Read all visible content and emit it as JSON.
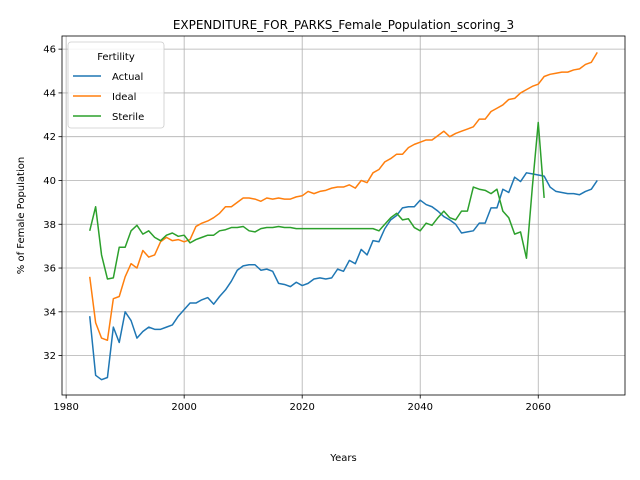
{
  "chart_data": {
    "type": "line",
    "title": "EXPENDITURE_FOR_PARKS_Female_Population_scoring_3",
    "xlabel": "Years",
    "ylabel": "% of Female Population",
    "xlim": [
      1979.3,
      2074.7
    ],
    "ylim": [
      30.2,
      46.6
    ],
    "xticks": [
      1980,
      2000,
      2020,
      2040,
      2060
    ],
    "yticks": [
      32,
      34,
      36,
      38,
      40,
      42,
      44,
      46
    ],
    "grid": true,
    "legend": {
      "title": "Fertility",
      "placement": "top-left"
    },
    "series": [
      {
        "name": "Actual",
        "color": "#1f77b4",
        "x": [
          1984,
          1985,
          1986,
          1987,
          1988,
          1989,
          1990,
          1991,
          1992,
          1993,
          1994,
          1995,
          1996,
          1997,
          1998,
          1999,
          2000,
          2001,
          2002,
          2003,
          2004,
          2005,
          2006,
          2007,
          2008,
          2009,
          2010,
          2011,
          2012,
          2013,
          2014,
          2015,
          2016,
          2017,
          2018,
          2019,
          2020,
          2021,
          2022,
          2023,
          2024,
          2025,
          2026,
          2027,
          2028,
          2029,
          2030,
          2031,
          2032,
          2033,
          2034,
          2035,
          2036,
          2037,
          2038,
          2039,
          2040,
          2041,
          2042,
          2043,
          2044,
          2045,
          2046,
          2047,
          2048,
          2049,
          2050,
          2051,
          2052,
          2053,
          2054,
          2055,
          2056,
          2057,
          2058,
          2059,
          2060,
          2061,
          2062,
          2063,
          2064,
          2065,
          2066,
          2067,
          2068,
          2069,
          2070
        ],
        "y": [
          33.8,
          31.1,
          30.9,
          31.0,
          33.3,
          32.6,
          34.0,
          33.6,
          32.8,
          33.1,
          33.3,
          33.2,
          33.2,
          33.3,
          33.4,
          33.8,
          34.1,
          34.4,
          34.4,
          34.55,
          34.65,
          34.35,
          34.7,
          35.0,
          35.4,
          35.9,
          36.1,
          36.15,
          36.15,
          35.9,
          35.95,
          35.85,
          35.3,
          35.25,
          35.15,
          35.35,
          35.2,
          35.3,
          35.5,
          35.55,
          35.5,
          35.55,
          35.95,
          35.85,
          36.35,
          36.2,
          36.85,
          36.6,
          37.25,
          37.2,
          37.8,
          38.2,
          38.4,
          38.75,
          38.8,
          38.8,
          39.1,
          38.9,
          38.8,
          38.6,
          38.35,
          38.2,
          38.0,
          37.6,
          37.65,
          37.7,
          38.05,
          38.05,
          38.75,
          38.75,
          39.6,
          39.45,
          40.15,
          39.95,
          40.35,
          40.3,
          40.25,
          40.2,
          39.7,
          39.5,
          39.45,
          39.4,
          39.4,
          39.35,
          39.5,
          39.6,
          40.0
        ]
      },
      {
        "name": "Ideal",
        "color": "#ff7f0e",
        "x": [
          1984,
          1985,
          1986,
          1987,
          1988,
          1989,
          1990,
          1991,
          1992,
          1993,
          1994,
          1995,
          1996,
          1997,
          1998,
          1999,
          2000,
          2001,
          2002,
          2003,
          2004,
          2005,
          2006,
          2007,
          2008,
          2009,
          2010,
          2011,
          2012,
          2013,
          2014,
          2015,
          2016,
          2017,
          2018,
          2019,
          2020,
          2021,
          2022,
          2023,
          2024,
          2025,
          2026,
          2027,
          2028,
          2029,
          2030,
          2031,
          2032,
          2033,
          2034,
          2035,
          2036,
          2037,
          2038,
          2039,
          2040,
          2041,
          2042,
          2043,
          2044,
          2045,
          2046,
          2047,
          2048,
          2049,
          2050,
          2051,
          2052,
          2053,
          2054,
          2055,
          2056,
          2057,
          2058,
          2059,
          2060,
          2061,
          2062,
          2063,
          2064,
          2065,
          2066,
          2067,
          2068,
          2069,
          2070
        ],
        "y": [
          35.6,
          33.5,
          32.8,
          32.7,
          34.6,
          34.7,
          35.6,
          36.2,
          36.0,
          36.8,
          36.5,
          36.6,
          37.2,
          37.4,
          37.25,
          37.3,
          37.2,
          37.3,
          37.9,
          38.05,
          38.15,
          38.3,
          38.5,
          38.8,
          38.8,
          39.0,
          39.2,
          39.2,
          39.15,
          39.05,
          39.2,
          39.15,
          39.2,
          39.15,
          39.15,
          39.25,
          39.3,
          39.5,
          39.4,
          39.5,
          39.55,
          39.65,
          39.7,
          39.7,
          39.8,
          39.65,
          40.0,
          39.9,
          40.35,
          40.5,
          40.85,
          41.0,
          41.2,
          41.2,
          41.5,
          41.65,
          41.75,
          41.85,
          41.85,
          42.05,
          42.25,
          42.0,
          42.15,
          42.25,
          42.35,
          42.45,
          42.8,
          42.8,
          43.15,
          43.3,
          43.45,
          43.7,
          43.75,
          44.0,
          44.15,
          44.3,
          44.4,
          44.75,
          44.85,
          44.9,
          44.95,
          44.95,
          45.05,
          45.1,
          45.3,
          45.4,
          45.85
        ]
      },
      {
        "name": "Sterile",
        "color": "#2ca02c",
        "x": [
          1984,
          1985,
          1986,
          1987,
          1988,
          1989,
          1990,
          1991,
          1992,
          1993,
          1994,
          1995,
          1996,
          1997,
          1998,
          1999,
          2000,
          2001,
          2002,
          2003,
          2004,
          2005,
          2006,
          2007,
          2008,
          2009,
          2010,
          2011,
          2012,
          2013,
          2014,
          2015,
          2016,
          2017,
          2018,
          2019,
          2020,
          2021,
          2022,
          2023,
          2024,
          2025,
          2026,
          2027,
          2028,
          2029,
          2030,
          2031,
          2032,
          2033,
          2034,
          2035,
          2036,
          2037,
          2038,
          2039,
          2040,
          2041,
          2042,
          2043,
          2044,
          2045,
          2046,
          2047,
          2048,
          2049,
          2050,
          2051,
          2052,
          2053,
          2054,
          2055,
          2056,
          2057,
          2058,
          2059,
          2060,
          2061
        ],
        "y": [
          37.7,
          38.8,
          36.6,
          35.5,
          35.55,
          36.95,
          36.95,
          37.7,
          37.95,
          37.55,
          37.7,
          37.4,
          37.25,
          37.5,
          37.6,
          37.45,
          37.5,
          37.15,
          37.3,
          37.4,
          37.5,
          37.5,
          37.7,
          37.75,
          37.85,
          37.85,
          37.9,
          37.7,
          37.65,
          37.8,
          37.85,
          37.85,
          37.9,
          37.85,
          37.85,
          37.8,
          37.8,
          37.8,
          37.8,
          37.8,
          37.8,
          37.8,
          37.8,
          37.8,
          37.8,
          37.8,
          37.8,
          37.8,
          37.8,
          37.7,
          38.0,
          38.3,
          38.5,
          38.2,
          38.25,
          37.85,
          37.7,
          38.05,
          37.95,
          38.3,
          38.6,
          38.3,
          38.2,
          38.6,
          38.6,
          39.7,
          39.6,
          39.55,
          39.4,
          39.6,
          38.6,
          38.3,
          37.55,
          37.65,
          36.45,
          39.7,
          42.65,
          39.2
        ]
      }
    ]
  }
}
